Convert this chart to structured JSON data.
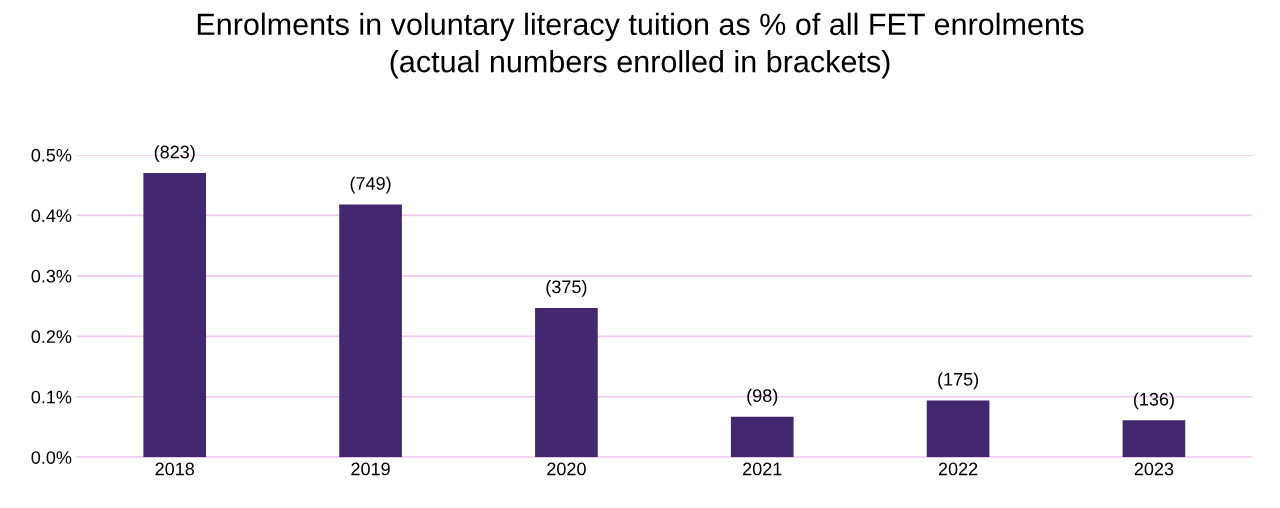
{
  "chart_data": {
    "type": "bar",
    "title": "Enrolments in voluntary literacy tuition as % of all FET enrolments\n(actual numbers enrolled in brackets)",
    "categories": [
      "2018",
      "2019",
      "2020",
      "2021",
      "2022",
      "2023"
    ],
    "values": [
      0.47,
      0.418,
      0.247,
      0.067,
      0.094,
      0.061
    ],
    "annotations": [
      {
        "text": "(823)",
        "x": "2018",
        "y": 0.47
      },
      {
        "text": "(749)",
        "x": "2019",
        "y": 0.418
      },
      {
        "text": "(375)",
        "x": "2020",
        "y": 0.247
      },
      {
        "text": "(98)",
        "x": "2021",
        "y": 0.067
      },
      {
        "text": "(175)",
        "x": "2022",
        "y": 0.094
      },
      {
        "text": "(136)",
        "x": "2023",
        "y": 0.061
      }
    ],
    "color": "#42266e",
    "ylim": [
      0,
      0.5
    ],
    "yticks": [
      {
        "value": 0,
        "label": "0.0%"
      },
      {
        "value": 0.1,
        "label": "0.1%"
      },
      {
        "value": 0.2,
        "label": "0.2%"
      },
      {
        "value": 0.3,
        "label": "0.3%"
      },
      {
        "value": 0.4,
        "label": "0.4%"
      },
      {
        "value": 0.5,
        "label": "0.5%"
      }
    ],
    "grid": "y"
  }
}
